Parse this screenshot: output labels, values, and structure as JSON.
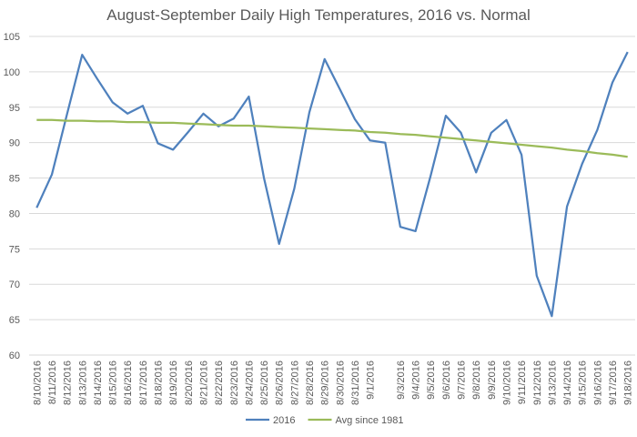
{
  "chart_data": {
    "type": "line",
    "title": "August-September Daily High Temperatures, 2016 vs. Normal",
    "categories": [
      "8/10/2016",
      "8/11/2016",
      "8/12/2016",
      "8/13/2016",
      "8/14/2016",
      "8/15/2016",
      "8/16/2016",
      "8/17/2016",
      "8/18/2016",
      "8/19/2016",
      "8/20/2016",
      "8/21/2016",
      "8/22/2016",
      "8/23/2016",
      "8/24/2016",
      "8/25/2016",
      "8/26/2016",
      "8/27/2016",
      "8/28/2016",
      "8/29/2016",
      "8/30/2016",
      "8/31/2016",
      "9/1/2016",
      null,
      "9/3/2016",
      "9/4/2016",
      "9/5/2016",
      "9/6/2016",
      "9/7/2016",
      "9/8/2016",
      "9/9/2016",
      "9/10/2016",
      "9/11/2016",
      "9/12/2016",
      "9/13/2016",
      "9/14/2016",
      "9/15/2016",
      "9/16/2016",
      "9/17/2016",
      "9/18/2016"
    ],
    "series": [
      {
        "name": "2016",
        "color": "#4f81bd",
        "values": [
          80.8,
          85.5,
          94,
          102.4,
          99,
          95.7,
          94.1,
          95.2,
          89.9,
          89,
          91.5,
          94.1,
          92.3,
          93.4,
          96.5,
          85,
          75.7,
          83.5,
          94.3,
          101.8,
          97.6,
          93.3,
          90.3,
          90,
          78.1,
          77.5,
          85.3,
          93.8,
          91.4,
          85.8,
          91.4,
          93.2,
          88.3,
          71.2,
          65.5,
          81,
          87,
          91.8,
          98.5,
          102.8
        ]
      },
      {
        "name": "Avg since 1981",
        "color": "#9bbb59",
        "values": [
          93.2,
          93.2,
          93.1,
          93.1,
          93.0,
          93.0,
          92.9,
          92.9,
          92.8,
          92.8,
          92.7,
          92.6,
          92.5,
          92.4,
          92.4,
          92.3,
          92.2,
          92.1,
          92.0,
          91.9,
          91.8,
          91.7,
          91.5,
          91.4,
          91.2,
          91.1,
          90.9,
          90.7,
          90.5,
          90.3,
          90.1,
          89.9,
          89.7,
          89.5,
          89.3,
          89.0,
          88.8,
          88.5,
          88.3,
          88.0
        ]
      }
    ],
    "ylim": [
      60,
      105
    ],
    "yticks": [
      60,
      65,
      70,
      75,
      80,
      85,
      90,
      95,
      100,
      105
    ],
    "grid": true,
    "legend": "bottom"
  }
}
